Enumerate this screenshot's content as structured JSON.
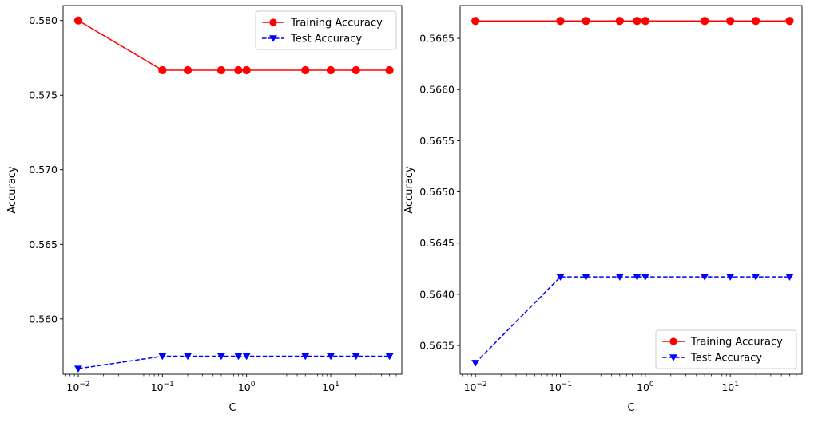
{
  "colors": {
    "training": "#ff0000",
    "test": "#0000ff",
    "axes": "#000000",
    "background": "#ffffff",
    "legend_border": "#cccccc"
  },
  "chart_data": [
    {
      "type": "line",
      "xlabel": "C",
      "ylabel": "Accuracy",
      "xscale": "log",
      "xlim": [
        0.0066,
        70
      ],
      "ylim": [
        0.5563,
        0.581
      ],
      "x_ticks": [
        {
          "value": 0.01,
          "base": "10",
          "exp": "−2"
        },
        {
          "value": 0.1,
          "base": "10",
          "exp": "−1"
        },
        {
          "value": 1,
          "base": "10",
          "exp": "0"
        },
        {
          "value": 10,
          "base": "10",
          "exp": "1"
        }
      ],
      "y_ticks": [
        {
          "value": 0.56,
          "label": "0.560"
        },
        {
          "value": 0.565,
          "label": "0.565"
        },
        {
          "value": 0.57,
          "label": "0.570"
        },
        {
          "value": 0.575,
          "label": "0.575"
        },
        {
          "value": 0.58,
          "label": "0.580"
        }
      ],
      "x": [
        0.01,
        0.1,
        0.2,
        0.5,
        0.8,
        1,
        5,
        10,
        20,
        50
      ],
      "series": [
        {
          "name": "Training Accuracy",
          "marker": "circle",
          "style": "solid",
          "color": "#ff0000",
          "values": [
            0.58,
            0.57667,
            0.57667,
            0.57667,
            0.57667,
            0.57667,
            0.57667,
            0.57667,
            0.57667,
            0.57667
          ]
        },
        {
          "name": "Test Accuracy",
          "marker": "triangle-down",
          "style": "dashed",
          "color": "#0000ff",
          "values": [
            0.55667,
            0.5575,
            0.5575,
            0.5575,
            0.5575,
            0.5575,
            0.5575,
            0.5575,
            0.5575,
            0.5575
          ]
        }
      ],
      "legend": "upper right",
      "grid": false
    },
    {
      "type": "line",
      "xlabel": "C",
      "ylabel": "Accuracy",
      "xscale": "log",
      "xlim": [
        0.0066,
        70
      ],
      "ylim": [
        0.56322,
        0.56682
      ],
      "x_ticks": [
        {
          "value": 0.01,
          "base": "10",
          "exp": "−2"
        },
        {
          "value": 0.1,
          "base": "10",
          "exp": "−1"
        },
        {
          "value": 1,
          "base": "10",
          "exp": "0"
        },
        {
          "value": 10,
          "base": "10",
          "exp": "1"
        }
      ],
      "y_ticks": [
        {
          "value": 0.5635,
          "label": "0.5635"
        },
        {
          "value": 0.564,
          "label": "0.5640"
        },
        {
          "value": 0.5645,
          "label": "0.5645"
        },
        {
          "value": 0.565,
          "label": "0.5650"
        },
        {
          "value": 0.5655,
          "label": "0.5655"
        },
        {
          "value": 0.566,
          "label": "0.5660"
        },
        {
          "value": 0.5665,
          "label": "0.5665"
        }
      ],
      "x": [
        0.01,
        0.1,
        0.2,
        0.5,
        0.8,
        1,
        5,
        10,
        20,
        50
      ],
      "series": [
        {
          "name": "Training Accuracy",
          "marker": "circle",
          "style": "solid",
          "color": "#ff0000",
          "values": [
            0.56667,
            0.56667,
            0.56667,
            0.56667,
            0.56667,
            0.56667,
            0.56667,
            0.56667,
            0.56667,
            0.56667
          ]
        },
        {
          "name": "Test Accuracy",
          "marker": "triangle-down",
          "style": "dashed",
          "color": "#0000ff",
          "values": [
            0.56333,
            0.56417,
            0.56417,
            0.56417,
            0.56417,
            0.56417,
            0.56417,
            0.56417,
            0.56417,
            0.56417
          ]
        }
      ],
      "legend": "lower right",
      "grid": false
    }
  ]
}
